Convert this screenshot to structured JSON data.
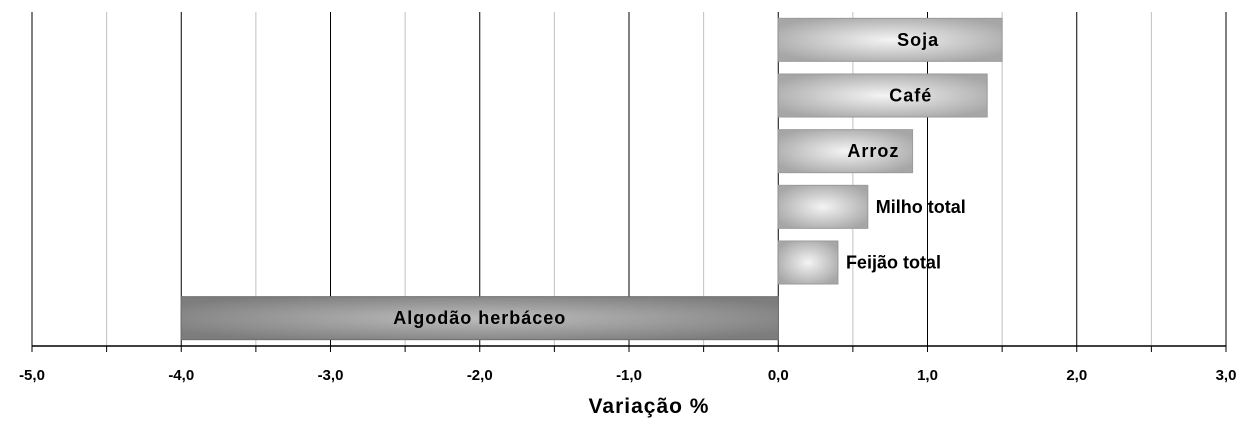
{
  "chart_data": {
    "type": "bar",
    "orientation": "horizontal",
    "title": "",
    "xlabel": "Variação %",
    "ylabel": "",
    "xlim": [
      -5.0,
      3.0
    ],
    "major_ticks": [
      -5.0,
      -4.0,
      -3.0,
      -2.0,
      -1.0,
      0.0,
      1.0,
      2.0,
      3.0
    ],
    "tick_labels": [
      "-5,0",
      "-4,0",
      "-3,0",
      "-2,0",
      "-1,0",
      "0,0",
      "1,0",
      "2,0",
      "3,0"
    ],
    "minor_gridlines": [
      -4.5,
      -3.5,
      -2.5,
      -1.5,
      -0.5,
      0.5,
      1.5,
      2.5
    ],
    "grid": true,
    "legend": false,
    "categories": [
      "Soja",
      "Café",
      "Arroz",
      "Milho total",
      "Feijão total",
      "Algodão herbáceo"
    ],
    "values": [
      1.5,
      1.4,
      0.9,
      0.6,
      0.4,
      -4.0
    ],
    "colors": {
      "positive_edge": "#a6a6a6",
      "positive_center": "#f4f4f4",
      "negative_edge": "#7d7d7d",
      "negative_center": "#bdbdbd",
      "major_grid": "#000000",
      "minor_grid": "#c0c0c0"
    }
  }
}
